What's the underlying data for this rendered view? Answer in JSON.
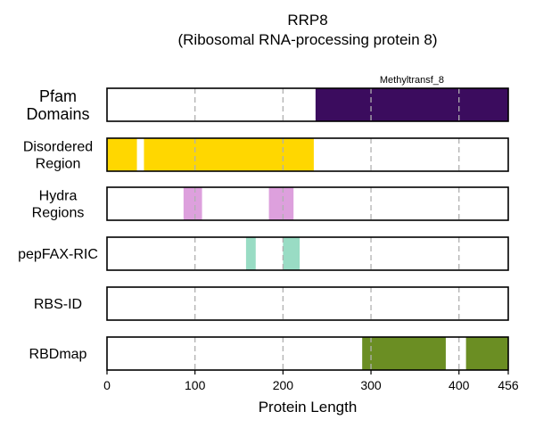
{
  "chart_data": {
    "type": "bar",
    "title": "RRP8",
    "subtitle": "(Ribosomal RNA-processing protein 8)",
    "xlabel": "Protein Length",
    "xlim": [
      0,
      456
    ],
    "xticks": [
      0,
      100,
      200,
      300,
      400,
      456
    ],
    "grid": "x-dashed",
    "tracks": [
      {
        "id": "pfam",
        "label": [
          "Pfam",
          "Domains"
        ],
        "segments": [
          {
            "start": 237,
            "end": 456,
            "color": "#3b0c5e",
            "label": "Methyltransf_8"
          }
        ]
      },
      {
        "id": "disordered",
        "label": [
          "Disordered",
          "Region"
        ],
        "segments": [
          {
            "start": 0,
            "end": 34,
            "color": "#ffd700"
          },
          {
            "start": 42,
            "end": 235,
            "color": "#ffd700"
          }
        ]
      },
      {
        "id": "hydra",
        "label": [
          "Hydra",
          "Regions"
        ],
        "segments": [
          {
            "start": 87,
            "end": 108,
            "color": "#dda0dd"
          },
          {
            "start": 184,
            "end": 212,
            "color": "#dda0dd"
          }
        ]
      },
      {
        "id": "pepfax",
        "label": [
          "pepFAX-RIC"
        ],
        "segments": [
          {
            "start": 158,
            "end": 169,
            "color": "#99dcc4"
          },
          {
            "start": 200,
            "end": 219,
            "color": "#99dcc4"
          }
        ]
      },
      {
        "id": "rbsid",
        "label": [
          "RBS-ID"
        ],
        "segments": []
      },
      {
        "id": "rbdmap",
        "label": [
          "RBDmap"
        ],
        "segments": [
          {
            "start": 290,
            "end": 385,
            "color": "#6b8e23"
          },
          {
            "start": 408,
            "end": 456,
            "color": "#6b8e23"
          }
        ]
      }
    ]
  }
}
